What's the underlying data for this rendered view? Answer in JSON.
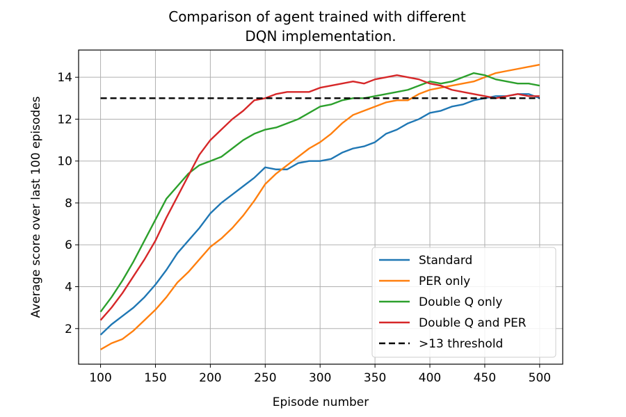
{
  "chart_data": {
    "type": "line",
    "title_lines": [
      "Comparison of agent trained with different",
      "DQN implementation."
    ],
    "xlabel": "Episode number",
    "ylabel": "Average score over last 100 episodes",
    "xlim": [
      80,
      521
    ],
    "ylim": [
      0.3,
      15.3
    ],
    "xticks": [
      100,
      150,
      200,
      250,
      300,
      350,
      400,
      450,
      500
    ],
    "yticks": [
      2,
      4,
      6,
      8,
      10,
      12,
      14
    ],
    "grid": true,
    "legend_position": "lower-right",
    "series": [
      {
        "name": "Standard",
        "color": "#1f77b4",
        "dashed": false,
        "x": [
          100,
          110,
          120,
          130,
          140,
          150,
          160,
          170,
          180,
          190,
          200,
          210,
          220,
          230,
          240,
          250,
          260,
          270,
          280,
          290,
          300,
          310,
          320,
          330,
          340,
          350,
          360,
          370,
          380,
          390,
          400,
          410,
          420,
          430,
          440,
          450,
          460,
          470,
          480,
          490,
          500
        ],
        "y": [
          1.7,
          2.2,
          2.6,
          3.0,
          3.5,
          4.1,
          4.8,
          5.6,
          6.2,
          6.8,
          7.5,
          8.0,
          8.4,
          8.8,
          9.2,
          9.7,
          9.6,
          9.6,
          9.9,
          10.0,
          10.0,
          10.1,
          10.4,
          10.6,
          10.7,
          10.9,
          11.3,
          11.5,
          11.8,
          12.0,
          12.3,
          12.4,
          12.6,
          12.7,
          12.9,
          13.0,
          13.1,
          13.1,
          13.2,
          13.2,
          13.0
        ]
      },
      {
        "name": "PER only",
        "color": "#ff7f0e",
        "dashed": false,
        "x": [
          100,
          110,
          120,
          130,
          140,
          150,
          160,
          170,
          180,
          190,
          200,
          210,
          220,
          230,
          240,
          250,
          260,
          270,
          280,
          290,
          300,
          310,
          320,
          330,
          340,
          350,
          360,
          370,
          380,
          390,
          400,
          410,
          420,
          430,
          440,
          450,
          460,
          470,
          480,
          490,
          500
        ],
        "y": [
          1.0,
          1.3,
          1.5,
          1.9,
          2.4,
          2.9,
          3.5,
          4.2,
          4.7,
          5.3,
          5.9,
          6.3,
          6.8,
          7.4,
          8.1,
          8.9,
          9.4,
          9.8,
          10.2,
          10.6,
          10.9,
          11.3,
          11.8,
          12.2,
          12.4,
          12.6,
          12.8,
          12.9,
          12.9,
          13.2,
          13.4,
          13.5,
          13.6,
          13.7,
          13.8,
          14.0,
          14.2,
          14.3,
          14.4,
          14.5,
          14.6
        ]
      },
      {
        "name": "Double Q only",
        "color": "#2ca02c",
        "dashed": false,
        "x": [
          100,
          110,
          120,
          130,
          140,
          150,
          160,
          170,
          180,
          190,
          200,
          210,
          220,
          230,
          240,
          250,
          260,
          270,
          280,
          290,
          300,
          310,
          320,
          330,
          340,
          350,
          360,
          370,
          380,
          390,
          400,
          410,
          420,
          430,
          440,
          450,
          460,
          470,
          480,
          490,
          500
        ],
        "y": [
          2.8,
          3.5,
          4.3,
          5.2,
          6.2,
          7.2,
          8.2,
          8.8,
          9.4,
          9.8,
          10.0,
          10.2,
          10.6,
          11.0,
          11.3,
          11.5,
          11.6,
          11.8,
          12.0,
          12.3,
          12.6,
          12.7,
          12.9,
          13.0,
          13.0,
          13.1,
          13.2,
          13.3,
          13.4,
          13.6,
          13.8,
          13.7,
          13.8,
          14.0,
          14.2,
          14.1,
          13.9,
          13.8,
          13.7,
          13.7,
          13.6
        ]
      },
      {
        "name": "Double Q and PER",
        "color": "#d62728",
        "dashed": false,
        "x": [
          100,
          110,
          120,
          130,
          140,
          150,
          160,
          170,
          180,
          190,
          200,
          210,
          220,
          230,
          240,
          250,
          260,
          270,
          280,
          290,
          300,
          310,
          320,
          330,
          340,
          350,
          360,
          370,
          380,
          390,
          400,
          410,
          420,
          430,
          440,
          450,
          460,
          470,
          480,
          490,
          500
        ],
        "y": [
          2.4,
          3.0,
          3.7,
          4.5,
          5.3,
          6.2,
          7.3,
          8.3,
          9.3,
          10.3,
          11.0,
          11.5,
          12.0,
          12.4,
          12.9,
          13.0,
          13.2,
          13.3,
          13.3,
          13.3,
          13.5,
          13.6,
          13.7,
          13.8,
          13.7,
          13.9,
          14.0,
          14.1,
          14.0,
          13.9,
          13.7,
          13.6,
          13.4,
          13.3,
          13.2,
          13.1,
          13.0,
          13.1,
          13.2,
          13.1,
          13.1
        ]
      },
      {
        "name": ">13 threshold",
        "color": "#000000",
        "dashed": true,
        "x": [
          100,
          500
        ],
        "y": [
          13,
          13
        ]
      }
    ]
  }
}
